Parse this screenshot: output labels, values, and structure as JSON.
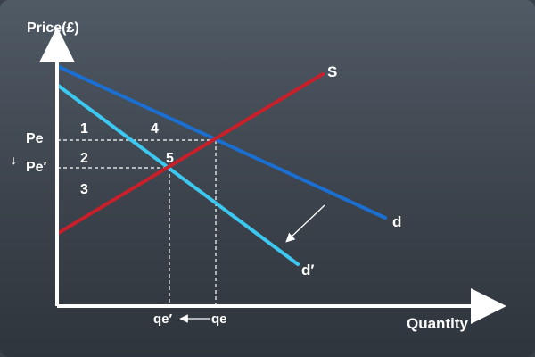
{
  "axes": {
    "y_label": "Price(£)",
    "x_label": "Quantity"
  },
  "curves": {
    "supply": {
      "label": "S",
      "color": "#c8202a"
    },
    "demand": {
      "label": "d",
      "color": "#1a6fd0"
    },
    "demand_new": {
      "label": "d′",
      "color": "#3cc8f0"
    }
  },
  "price_levels": {
    "pe": "Pe",
    "pe_new": "Pe′",
    "arrow": "↓"
  },
  "quantity_levels": {
    "qe": "qe",
    "qe_new": "qe′"
  },
  "areas": {
    "a1": "1",
    "a2": "2",
    "a3": "3",
    "a4": "4",
    "a5": "5"
  }
}
